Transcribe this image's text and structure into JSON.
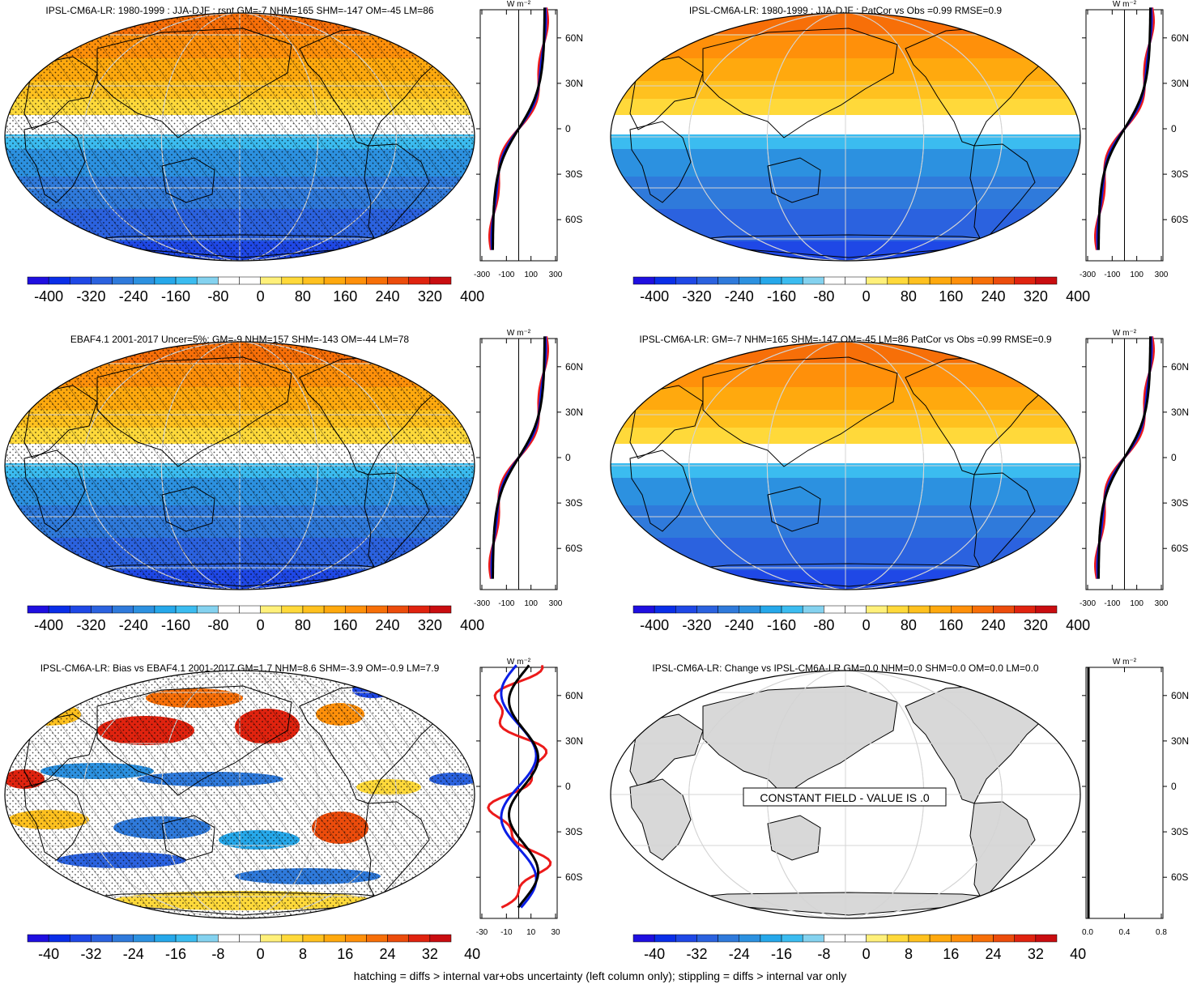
{
  "footer": "hatching = diffs > internal var+obs uncertainty (left column only); stippling = diffs > internal var only",
  "zonal_unit": "W m⁻²",
  "colors": {
    "palette": [
      "#1f0fe0",
      "#0a2ee8",
      "#1f48e6",
      "#2b62df",
      "#2f7adb",
      "#2c91e0",
      "#26a8ea",
      "#3bbcf0",
      "#84d2ef",
      "#ffffff",
      "#ffffff",
      "#fff07a",
      "#ffd93a",
      "#ffc11f",
      "#ffa90e",
      "#ff900a",
      "#f76f08",
      "#ec4c0c",
      "#e0230f",
      "#c90d10"
    ],
    "obs": "#000000",
    "model": "#0a1ee6",
    "bias": "#ec1a1a",
    "land": "#d8d8d8",
    "graticule": "#d4d4d4",
    "coast": "#000000"
  },
  "chart_data": [
    {
      "type": "heatmap",
      "title": "IPSL-CM6A-LR: 1980-1999 : JJA-DJF : rsnt GM=-7 NHM=165 SHM=-147 OM=-45 LM=86",
      "field": "jja_minus_djf",
      "hatching": true,
      "stippling": true,
      "colorbar_labels": [
        "-400",
        "-320",
        "-240",
        "-160",
        "-80",
        "0",
        "80",
        "160",
        "240",
        "320",
        "400"
      ],
      "zonal_ticks": [
        "-300",
        "-100",
        "100",
        "300"
      ],
      "zonal_lat_labels": [
        "60N",
        "30N",
        "0",
        "30S",
        "60S"
      ],
      "zonal_series": [
        "model",
        "obs",
        "bias"
      ]
    },
    {
      "type": "heatmap",
      "title": "IPSL-CM6A-LR: 1980-1999 : JJA-DJF : PatCor vs Obs =0.99 RMSE=0.9",
      "field": "jja_minus_djf",
      "hatching": false,
      "stippling": false,
      "colorbar_labels": [
        "-400",
        "-320",
        "-240",
        "-160",
        "-80",
        "0",
        "80",
        "160",
        "240",
        "320",
        "400"
      ],
      "zonal_ticks": [
        "-300",
        "-100",
        "100",
        "300"
      ],
      "zonal_lat_labels": [
        "60N",
        "30N",
        "0",
        "30S",
        "60S"
      ],
      "zonal_series": [
        "model",
        "obs",
        "bias"
      ]
    },
    {
      "type": "heatmap",
      "title": "EBAF4.1 2001-2017 Uncer=5%: GM=-9 NHM=157 SHM=-143 OM=-44 LM=78",
      "field": "jja_minus_djf",
      "hatching": true,
      "stippling": true,
      "colorbar_labels": [
        "-400",
        "-320",
        "-240",
        "-160",
        "-80",
        "0",
        "80",
        "160",
        "240",
        "320",
        "400"
      ],
      "zonal_ticks": [
        "-300",
        "-100",
        "100",
        "300"
      ],
      "zonal_lat_labels": [
        "60N",
        "30N",
        "0",
        "30S",
        "60S"
      ],
      "zonal_series": [
        "model",
        "obs",
        "bias"
      ]
    },
    {
      "type": "heatmap",
      "title": "IPSL-CM6A-LR: GM=-7 NHM=165 SHM=-147 OM=-45 LM=86 PatCor vs Obs =0.99 RMSE=0.9",
      "field": "jja_minus_djf",
      "hatching": false,
      "stippling": false,
      "colorbar_labels": [
        "-400",
        "-320",
        "-240",
        "-160",
        "-80",
        "0",
        "80",
        "160",
        "240",
        "320",
        "400"
      ],
      "zonal_ticks": [
        "-300",
        "-100",
        "100",
        "300"
      ],
      "zonal_lat_labels": [
        "60N",
        "30N",
        "0",
        "30S",
        "60S"
      ],
      "zonal_series": [
        "model",
        "obs",
        "bias"
      ]
    },
    {
      "type": "heatmap",
      "title": "IPSL-CM6A-LR: Bias vs EBAF4.1 2001-2017 GM=1.7 NHM=8.6 SHM=-3.9 OM=-0.9 LM=7.9",
      "field": "bias",
      "hatching": true,
      "stippling": true,
      "colorbar_labels": [
        "-40",
        "-32",
        "-24",
        "-16",
        "-8",
        "0",
        "8",
        "16",
        "24",
        "32",
        "40"
      ],
      "zonal_ticks": [
        "-30",
        "-10",
        "10",
        "30"
      ],
      "zonal_lat_labels": [
        "60N",
        "30N",
        "0",
        "30S",
        "60S"
      ],
      "zonal_series": [
        "model",
        "obs",
        "bias"
      ]
    },
    {
      "type": "heatmap",
      "title": "IPSL-CM6A-LR: Change vs IPSL-CM6A-LR GM=0.0 NHM=0.0 SHM=0.0 OM=0.0 LM=0.0",
      "field": "constant",
      "hatching": false,
      "stippling": false,
      "annotation": "CONSTANT FIELD - VALUE IS .0",
      "colorbar_labels": [
        "-40",
        "-32",
        "-24",
        "-16",
        "-8",
        "0",
        "8",
        "16",
        "24",
        "32",
        "40"
      ],
      "zonal_ticks": [
        "0.0",
        "0.4",
        "0.8"
      ],
      "zonal_lat_labels": [
        "60N",
        "30N",
        "0",
        "30S",
        "60S"
      ],
      "zonal_series": []
    }
  ]
}
